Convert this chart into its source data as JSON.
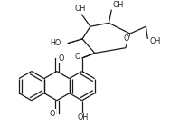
{
  "bg_color": "#ffffff",
  "line_color": "#1a1a1a",
  "line_width": 0.9,
  "font_size": 5.8,
  "fig_width": 1.88,
  "fig_height": 1.51,
  "dpi": 100,
  "xlim": [
    0,
    188
  ],
  "ylim": [
    0,
    151
  ]
}
